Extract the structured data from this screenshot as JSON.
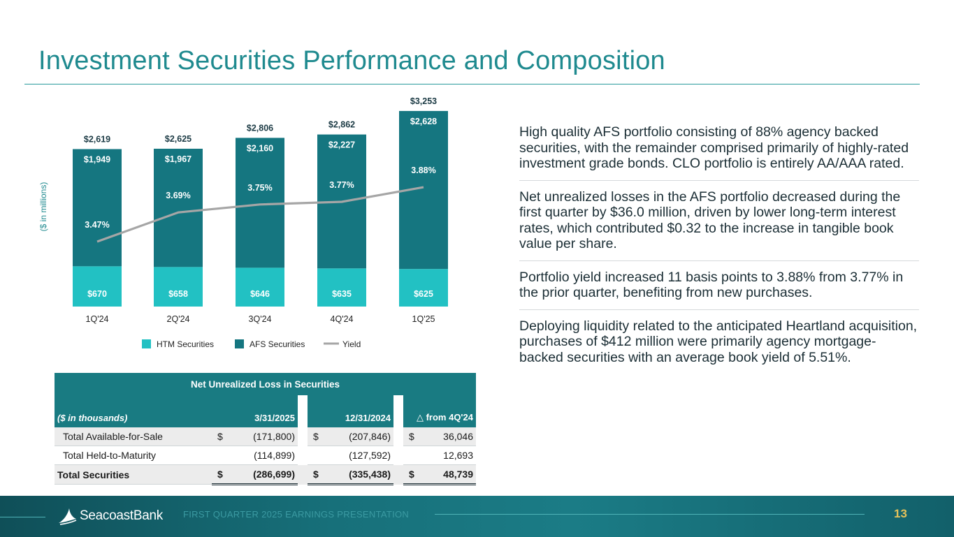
{
  "page": {
    "title": "Investment Securities Performance and Composition"
  },
  "chart_data": {
    "type": "bar",
    "stacked": true,
    "ylabel": "($ in millions)",
    "categories": [
      "1Q'24",
      "2Q'24",
      "3Q'24",
      "4Q'24",
      "1Q'25"
    ],
    "series": [
      {
        "name": "HTM Securities",
        "values": [
          670,
          658,
          646,
          635,
          625
        ],
        "labels": [
          "$670",
          "$658",
          "$646",
          "$635",
          "$625"
        ],
        "color": "#22c1c3"
      },
      {
        "name": "AFS Securities",
        "values": [
          1949,
          1967,
          2160,
          2227,
          2628
        ],
        "labels": [
          "$1,949",
          "$1,967",
          "$2,160",
          "$2,227",
          "$2,628"
        ],
        "color": "#157680"
      }
    ],
    "totals": {
      "values": [
        2619,
        2625,
        2806,
        2862,
        3253
      ],
      "labels": [
        "$2,619",
        "$2,625",
        "$2,806",
        "$2,862",
        "$3,253"
      ]
    },
    "yield": {
      "name": "Yield",
      "values": [
        3.47,
        3.69,
        3.75,
        3.77,
        3.88
      ],
      "labels": [
        "3.47%",
        "3.69%",
        "3.75%",
        "3.77%",
        "3.88%"
      ],
      "color": "#a6a6a6"
    },
    "legend": [
      {
        "label": "HTM Securities",
        "type": "box",
        "color": "#22c1c3"
      },
      {
        "label": "AFS Securities",
        "type": "box",
        "color": "#157680"
      },
      {
        "label": "Yield",
        "type": "line",
        "color": "#a6a6a6"
      }
    ],
    "legend_position": "bottom"
  },
  "bullets": [
    "High quality AFS portfolio consisting of 88% agency backed securities, with the remainder comprised primarily of highly-rated investment grade bonds. CLO portfolio is entirely AA/AAA rated.",
    "Net unrealized losses in the AFS portfolio decreased during the first quarter by $36.0 million, driven by lower long-term interest rates, which contributed $0.32 to the increase in tangible book value per share.",
    "Portfolio yield increased 11 basis points to 3.88% from 3.77% in the prior quarter, benefiting from new purchases.",
    "Deploying liquidity related to the anticipated Heartland acquisition, purchases of $412 million were primarily agency mortgage-backed securities with an average book yield of 5.51%."
  ],
  "table": {
    "title": "Net Unrealized Loss in Securities",
    "units_label": "($ in thousands)",
    "col1": "3/31/2025",
    "col2": "12/31/2024",
    "col3_symbol": "△",
    "col3": "from 4Q'24",
    "currency": "$",
    "rows": [
      {
        "label": "Total Available-for-Sale",
        "v1": "(171,800)",
        "v2": "(207,846)",
        "v3": "36,046"
      },
      {
        "label": "Total Held-to-Maturity",
        "v1": "(114,899)",
        "v2": "(127,592)",
        "v3": "12,693"
      },
      {
        "label": "Total Securities",
        "v1": "(286,699)",
        "v2": "(335,438)",
        "v3": "48,739"
      }
    ]
  },
  "footer": {
    "brand": "SeacoastBank",
    "presentation": "FIRST QUARTER 2025 EARNINGS PRESENTATION",
    "page_number": "13"
  }
}
